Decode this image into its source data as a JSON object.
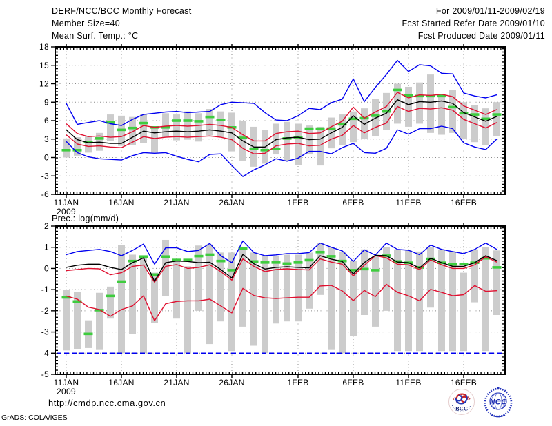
{
  "header": {
    "title": "DERF/NCC/BCC Monthly Forecast",
    "member_size": "Member Size=40",
    "period": "For 2009/01/11-2009/02/19",
    "refer_date": "Fcst Started Refer Date 2009/01/10",
    "produced_date": "Fcst Produced Date 2009/01/11"
  },
  "footer": {
    "url": "http://cmdp.ncc.cma.gov.cn",
    "grads_credit": "GrADS: COLA/IGES",
    "logos": [
      {
        "id": "bcc",
        "label": "BCC"
      },
      {
        "id": "ncc",
        "label": "NCC"
      }
    ]
  },
  "colors": {
    "envelope": "#0000f0",
    "quartile": "#e01030",
    "mean": "#000000",
    "obs": "#3ecc3e",
    "spread_bar": "#cccccc",
    "grid": "#8a8a8a",
    "axis": "#000000"
  },
  "x_axis": {
    "tick_labels": [
      "11JAN",
      "16JAN",
      "21JAN",
      "26JAN",
      "1FEB",
      "6FEB",
      "11FEB",
      "16FEB"
    ],
    "tick_days": [
      0,
      5,
      10,
      15,
      21,
      26,
      31,
      36
    ],
    "year_label": "2009",
    "days": 40
  },
  "chart_data": [
    {
      "name": "surface-temperature",
      "type": "line",
      "title": "Mean Surf. Temp.: °C",
      "ylim": [
        -6,
        18
      ],
      "yticks": [
        18,
        15,
        12,
        9,
        6,
        3,
        0,
        -3,
        -6
      ],
      "grid": true,
      "legend": "none",
      "series": {
        "ens_max": [
          8.8,
          5.4,
          5.7,
          6.0,
          5.5,
          5.2,
          6.2,
          7.0,
          7.2,
          7.4,
          7.5,
          7.3,
          7.4,
          7.5,
          8.6,
          9.0,
          8.9,
          8.8,
          7.3,
          6.1,
          6.0,
          6.8,
          8.0,
          7.8,
          8.9,
          9.5,
          12.8,
          9.1,
          11.4,
          13.5,
          15.8,
          14.0,
          15.1,
          14.9,
          13.7,
          13.6,
          10.5,
          10.0,
          9.7,
          10.2
        ],
        "upper_quartile": [
          5.5,
          3.9,
          3.4,
          3.5,
          3.3,
          3.4,
          4.2,
          5.2,
          4.9,
          5.1,
          5.2,
          5.1,
          5.2,
          5.4,
          5.2,
          4.9,
          3.7,
          2.7,
          2.7,
          3.9,
          4.2,
          4.3,
          3.9,
          4.0,
          5.0,
          5.9,
          8.2,
          6.4,
          7.4,
          8.3,
          10.6,
          9.7,
          10.2,
          10.1,
          10.3,
          9.9,
          8.4,
          7.7,
          7.0,
          7.8
        ],
        "mean": [
          4.5,
          2.9,
          2.4,
          2.5,
          2.3,
          2.3,
          3.3,
          4.3,
          4.0,
          4.2,
          4.3,
          4.2,
          4.3,
          4.5,
          4.3,
          4.0,
          2.7,
          1.7,
          1.7,
          2.9,
          3.2,
          3.3,
          2.9,
          3.0,
          4.0,
          4.9,
          6.8,
          5.4,
          6.4,
          7.2,
          9.4,
          8.6,
          9.1,
          9.0,
          9.2,
          8.8,
          7.3,
          6.6,
          5.9,
          6.7
        ],
        "lower_quartile": [
          3.7,
          2.2,
          1.8,
          1.9,
          1.7,
          1.6,
          2.5,
          3.4,
          3.1,
          3.3,
          3.4,
          3.3,
          3.4,
          3.5,
          3.3,
          2.9,
          1.5,
          0.6,
          0.7,
          1.9,
          2.2,
          2.3,
          1.9,
          2.0,
          3.0,
          3.6,
          5.2,
          4.0,
          4.9,
          5.6,
          8.3,
          7.5,
          8.0,
          7.9,
          8.1,
          7.7,
          6.2,
          5.5,
          4.8,
          5.7
        ],
        "ens_min": [
          2.6,
          0.8,
          0.1,
          -0.2,
          -0.3,
          -0.4,
          0.3,
          0.8,
          0.7,
          0.8,
          0.2,
          -0.3,
          -0.7,
          0.5,
          0.6,
          -1.3,
          -3.1,
          -2.0,
          -1.2,
          -0.2,
          -0.6,
          -0.1,
          1.0,
          1.0,
          0.6,
          1.6,
          2.3,
          0.8,
          0.7,
          1.5,
          4.5,
          3.8,
          4.7,
          4.7,
          5.1,
          4.7,
          2.4,
          1.7,
          1.3,
          3.0
        ],
        "obs": [
          1.2,
          1.2,
          2.5,
          3.1,
          5.7,
          4.5,
          4.8,
          5.6,
          4.9,
          4.9,
          6.0,
          6.0,
          5.9,
          6.6,
          6.1,
          4.9,
          3.2,
          1.4,
          1.2,
          1.4,
          3.1,
          3.3,
          4.7,
          4.7,
          4.7,
          5.4,
          6.3,
          6.4,
          6.8,
          7.5,
          11.0,
          10.1,
          10.0,
          10.0,
          10.0,
          8.2,
          7.2,
          7.0,
          6.3,
          7.0
        ],
        "spread_bars": [
          [
            0.0,
            3.1
          ],
          [
            0.3,
            3.3
          ],
          [
            0.8,
            3.5
          ],
          [
            1.1,
            4.0
          ],
          [
            2.7,
            7.0
          ],
          [
            1.9,
            6.8
          ],
          [
            2.0,
            6.6
          ],
          [
            2.4,
            7.0
          ],
          [
            0.8,
            5.1
          ],
          [
            3.3,
            7.2
          ],
          [
            2.8,
            7.0
          ],
          [
            2.9,
            7.5
          ],
          [
            2.6,
            7.2
          ],
          [
            3.6,
            7.9
          ],
          [
            3.3,
            7.5
          ],
          [
            1.0,
            7.3
          ],
          [
            -0.5,
            6.0
          ],
          [
            -1.5,
            5.0
          ],
          [
            -1.0,
            4.5
          ],
          [
            0.5,
            5.5
          ],
          [
            -0.5,
            5.8
          ],
          [
            -1.2,
            5.5
          ],
          [
            0.5,
            5.2
          ],
          [
            -1.3,
            5.0
          ],
          [
            1.5,
            6.5
          ],
          [
            2.0,
            7.0
          ],
          [
            2.5,
            7.5
          ],
          [
            3.0,
            8.0
          ],
          [
            3.5,
            9.5
          ],
          [
            4.5,
            10.5
          ],
          [
            5.5,
            12.0
          ],
          [
            5.0,
            11.5
          ],
          [
            5.5,
            12.2
          ],
          [
            4.0,
            13.5
          ],
          [
            3.7,
            10.3
          ],
          [
            4.0,
            11.0
          ],
          [
            3.0,
            9.0
          ],
          [
            2.5,
            8.5
          ],
          [
            2.0,
            8.0
          ],
          [
            3.5,
            9.0
          ]
        ]
      }
    },
    {
      "name": "precipitation",
      "type": "line",
      "title": "Prec.: log(mm/d)",
      "ylim": [
        -5,
        2
      ],
      "yticks": [
        2,
        1,
        0,
        -1,
        -2,
        -3,
        -4,
        -5
      ],
      "grid": true,
      "legend": "none",
      "floor_line": -4,
      "series": {
        "ens_max": [
          0.65,
          0.8,
          0.85,
          0.9,
          0.8,
          0.6,
          0.85,
          1.15,
          0.2,
          0.97,
          0.97,
          0.8,
          0.85,
          1.18,
          0.6,
          0.27,
          1.3,
          0.75,
          0.6,
          0.64,
          0.7,
          0.7,
          0.75,
          1.2,
          1.0,
          0.83,
          0.33,
          0.88,
          0.63,
          1.2,
          0.9,
          0.86,
          0.65,
          1.1,
          0.9,
          0.8,
          0.7,
          0.9,
          1.2,
          0.9
        ],
        "upper_quartile": [
          -0.1,
          -0.05,
          0.0,
          -0.02,
          -0.3,
          -0.2,
          0.1,
          0.16,
          -0.65,
          0.1,
          0.18,
          0.0,
          0.05,
          0.17,
          -0.15,
          -0.55,
          0.45,
          0.1,
          -0.15,
          -0.05,
          -0.02,
          -0.05,
          -0.07,
          0.45,
          0.3,
          0.2,
          -0.35,
          0.15,
          0.6,
          0.5,
          0.2,
          0.17,
          -0.05,
          0.4,
          0.17,
          0.0,
          0.0,
          0.17,
          0.55,
          0.3
        ],
        "mean": [
          0.05,
          0.15,
          0.2,
          0.2,
          0.05,
          -0.05,
          0.27,
          0.5,
          -0.6,
          0.27,
          0.35,
          0.33,
          0.27,
          0.29,
          -0.05,
          -0.45,
          0.67,
          0.22,
          -0.03,
          0.05,
          0.08,
          0.05,
          0.03,
          0.6,
          0.44,
          0.33,
          -0.26,
          0.28,
          0.62,
          0.6,
          0.3,
          0.27,
          0.02,
          0.48,
          0.27,
          0.1,
          0.1,
          0.27,
          0.6,
          0.37
        ],
        "lower_quartile": [
          -1.3,
          -1.45,
          -1.83,
          -1.94,
          -2.26,
          -1.94,
          -1.77,
          -1.29,
          -2.47,
          -1.67,
          -1.56,
          -1.53,
          -1.53,
          -1.45,
          -1.77,
          -2.1,
          -0.94,
          -1.28,
          -1.39,
          -1.42,
          -1.39,
          -1.36,
          -1.36,
          -0.83,
          -0.8,
          -1.06,
          -1.52,
          -1.04,
          -1.33,
          -0.75,
          -1.13,
          -1.29,
          -1.53,
          -0.99,
          -1.13,
          -1.29,
          -1.24,
          -0.81,
          -1.08,
          -1.05
        ],
        "obs": [
          -1.37,
          -1.56,
          -3.09,
          -1.97,
          -1.3,
          -0.62,
          0.35,
          0.56,
          -0.29,
          0.56,
          0.4,
          0.4,
          0.58,
          0.65,
          0.35,
          -0.08,
          0.95,
          0.33,
          0.28,
          0.28,
          0.23,
          0.28,
          0.39,
          0.77,
          0.57,
          0.35,
          -0.08,
          -0.03,
          -0.08,
          0.6,
          0.33,
          0.27,
          0.05,
          0.45,
          0.27,
          0.19,
          0.2,
          0.27,
          0.48,
          0.05
        ],
        "spread_bars": [
          [
            -3.87,
            -1.0
          ],
          [
            -3.8,
            -1.1
          ],
          [
            -3.76,
            -2.45
          ],
          [
            -3.85,
            -1.15
          ],
          [
            -2.37,
            -0.86
          ],
          [
            -4.0,
            1.1
          ],
          [
            -3.1,
            0.65
          ],
          [
            -4.0,
            0.6
          ],
          [
            -2.58,
            -0.2
          ],
          [
            -1.3,
            1.35
          ],
          [
            -2.37,
            0.43
          ],
          [
            -4.0,
            0.1
          ],
          [
            -2.0,
            1.08
          ],
          [
            -3.57,
            1.13
          ],
          [
            -2.5,
            0.75
          ],
          [
            -3.9,
            0.75
          ],
          [
            -2.75,
            0.95
          ],
          [
            -3.65,
            0.75
          ],
          [
            -4.0,
            0.6
          ],
          [
            -2.6,
            0.6
          ],
          [
            -2.5,
            0.65
          ],
          [
            -2.5,
            0.65
          ],
          [
            -1.9,
            0.75
          ],
          [
            -1.25,
            1.2
          ],
          [
            -3.85,
            1.0
          ],
          [
            -4.0,
            0.8
          ],
          [
            -3.2,
            0.35
          ],
          [
            -2.2,
            0.9
          ],
          [
            -2.75,
            0.6
          ],
          [
            -2.0,
            1.0
          ],
          [
            -3.9,
            0.9
          ],
          [
            -3.9,
            0.85
          ],
          [
            -3.9,
            0.8
          ],
          [
            -1.85,
            1.0
          ],
          [
            -3.9,
            0.9
          ],
          [
            -3.9,
            0.8
          ],
          [
            -3.9,
            -0.2
          ],
          [
            -1.6,
            0.9
          ],
          [
            -3.9,
            1.0
          ],
          [
            -2.2,
            0.85
          ]
        ]
      }
    }
  ]
}
